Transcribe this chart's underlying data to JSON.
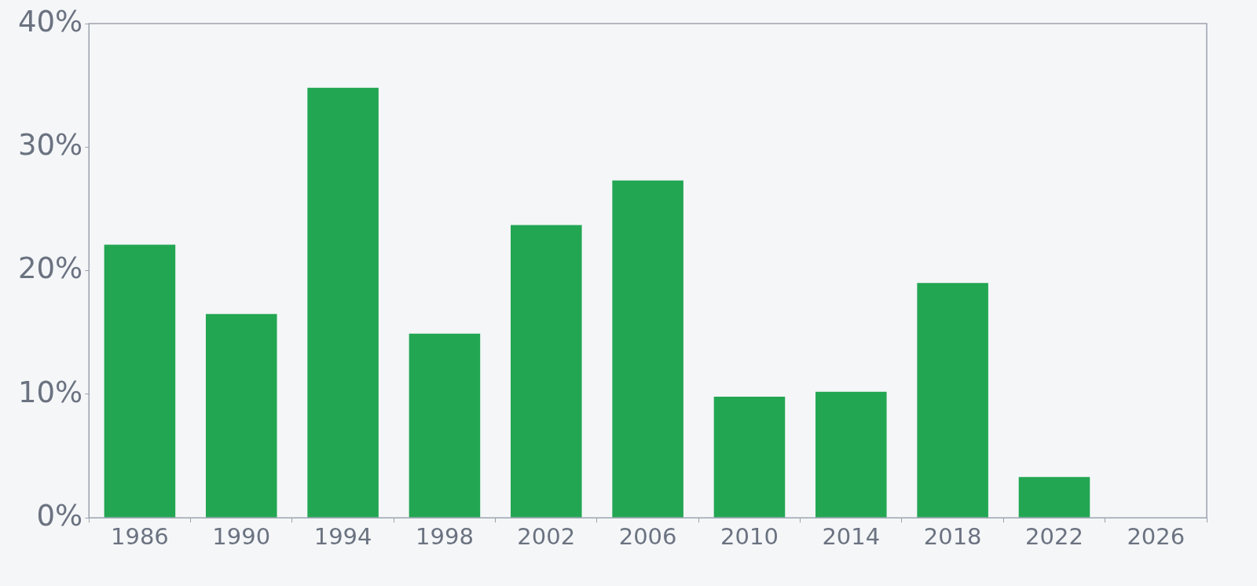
{
  "chart_data": {
    "type": "bar",
    "categories": [
      "1986",
      "1990",
      "1994",
      "1998",
      "2002",
      "2006",
      "2010",
      "2014",
      "2018",
      "2022",
      "2026"
    ],
    "values": [
      22.1,
      16.5,
      34.8,
      14.9,
      23.7,
      27.3,
      9.8,
      10.2,
      19.0,
      3.3,
      null
    ],
    "color": "#22a652",
    "ylim": [
      0,
      40
    ],
    "yticks": [
      {
        "value": 0,
        "label": "0%"
      },
      {
        "value": 10,
        "label": "10%"
      },
      {
        "value": 20,
        "label": "20%"
      },
      {
        "value": 30,
        "label": "30%"
      },
      {
        "value": 40,
        "label": "40%"
      }
    ],
    "grid": false,
    "legend": false
  }
}
